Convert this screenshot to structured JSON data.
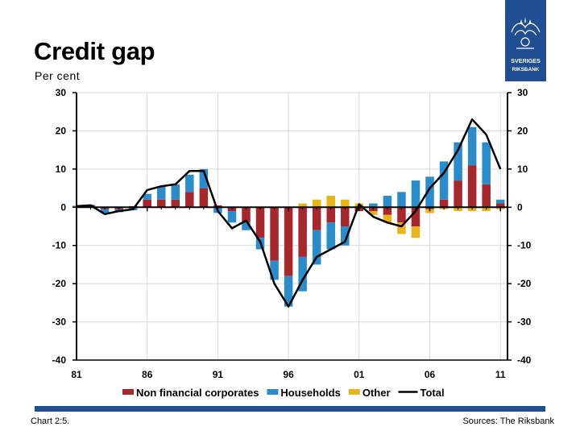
{
  "header": {
    "title": "Credit gap",
    "unit": "Per cent"
  },
  "logo": {
    "line1": "SVERIGES",
    "line2": "RIKSBANK"
  },
  "footer": {
    "chart_number": "Chart 2:5.",
    "source": "Sources: The Riksbank"
  },
  "colors": {
    "non_financial": "#a8272d",
    "households": "#2b8ccc",
    "other": "#e8b418",
    "total": "#000000",
    "brand": "#1f4e93"
  },
  "chart_data": {
    "type": "bar",
    "stacked": true,
    "title": "Credit gap",
    "ylabel": "Per cent",
    "ylim": [
      -40,
      30
    ],
    "yticks": [
      30,
      20,
      10,
      0,
      -10,
      -20,
      -30,
      -40
    ],
    "xlim": [
      1981,
      2011.5
    ],
    "xticks": [
      {
        "value": 1981,
        "label": "81"
      },
      {
        "value": 1986,
        "label": "86"
      },
      {
        "value": 1991,
        "label": "91"
      },
      {
        "value": 1996,
        "label": "96"
      },
      {
        "value": 2001,
        "label": "01"
      },
      {
        "value": 2006,
        "label": "06"
      },
      {
        "value": 2011,
        "label": "11"
      }
    ],
    "grid": true,
    "legend_position": "bottom",
    "series": [
      {
        "name": "Non financial corporates",
        "type": "bar",
        "x": [
          1981,
          1982,
          1983,
          1984,
          1985,
          1986,
          1987,
          1988,
          1989,
          1990,
          1991,
          1992,
          1993,
          1994,
          1995,
          1996,
          1997,
          1998,
          1999,
          2000,
          2001,
          2002,
          2003,
          2004,
          2005,
          2006,
          2007,
          2008,
          2009,
          2010,
          2011
        ],
        "values": [
          0.2,
          0.5,
          -0.5,
          -0.5,
          0.3,
          2,
          2,
          2,
          4,
          5,
          0.5,
          -1,
          -4,
          -8,
          -14,
          -18,
          -13,
          -6,
          -4,
          -5,
          -1,
          -1,
          -2,
          -4,
          -5,
          -0.5,
          2,
          7,
          11,
          6,
          1
        ]
      },
      {
        "name": "Households",
        "type": "bar",
        "x": [
          1981,
          1982,
          1983,
          1984,
          1985,
          1986,
          1987,
          1988,
          1989,
          1990,
          1991,
          1992,
          1993,
          1994,
          1995,
          1996,
          1997,
          1998,
          1999,
          2000,
          2001,
          2002,
          2003,
          2004,
          2005,
          2006,
          2007,
          2008,
          2009,
          2010,
          2011
        ],
        "values": [
          0.2,
          0.2,
          -1,
          -0.8,
          -0.8,
          1.5,
          3.5,
          4,
          4.5,
          5,
          -1.5,
          -3,
          -2,
          -3,
          -5,
          -8,
          -9,
          -9,
          -7,
          -5,
          0,
          1,
          3,
          4,
          7,
          8,
          10,
          10,
          10,
          11,
          1
        ]
      },
      {
        "name": "Other",
        "type": "bar",
        "x": [
          1981,
          1982,
          1983,
          1984,
          1985,
          1986,
          1987,
          1988,
          1989,
          1990,
          1991,
          1992,
          1993,
          1994,
          1995,
          1996,
          1997,
          1998,
          1999,
          2000,
          2001,
          2002,
          2003,
          2004,
          2005,
          2006,
          2007,
          2008,
          2009,
          2010,
          2011
        ],
        "values": [
          0,
          0,
          0,
          0,
          0,
          0,
          0,
          0,
          0,
          0,
          0,
          0,
          0,
          0,
          0,
          0,
          1,
          2,
          3,
          2,
          1,
          -1,
          -2,
          -3,
          -3,
          -1,
          -0.5,
          -1,
          -1,
          -1,
          -0.5
        ]
      },
      {
        "name": "Total",
        "type": "line",
        "x": [
          1981,
          1982,
          1983,
          1984,
          1985,
          1986,
          1987,
          1988,
          1989,
          1990,
          1991,
          1992,
          1993,
          1994,
          1995,
          1996,
          1997,
          1998,
          1999,
          2000,
          2001,
          2002,
          2003,
          2004,
          2005,
          2006,
          2007,
          2008,
          2009,
          2010,
          2011
        ],
        "values": [
          0.3,
          0.5,
          -1.8,
          -1,
          -0.5,
          4.5,
          5.5,
          6,
          9.5,
          9.5,
          -1,
          -5.5,
          -3.5,
          -9,
          -20,
          -26,
          -19,
          -13,
          -11,
          -9,
          0.8,
          -2.5,
          -4,
          -5,
          -1,
          5,
          9,
          15,
          23,
          19,
          10
        ]
      }
    ]
  }
}
